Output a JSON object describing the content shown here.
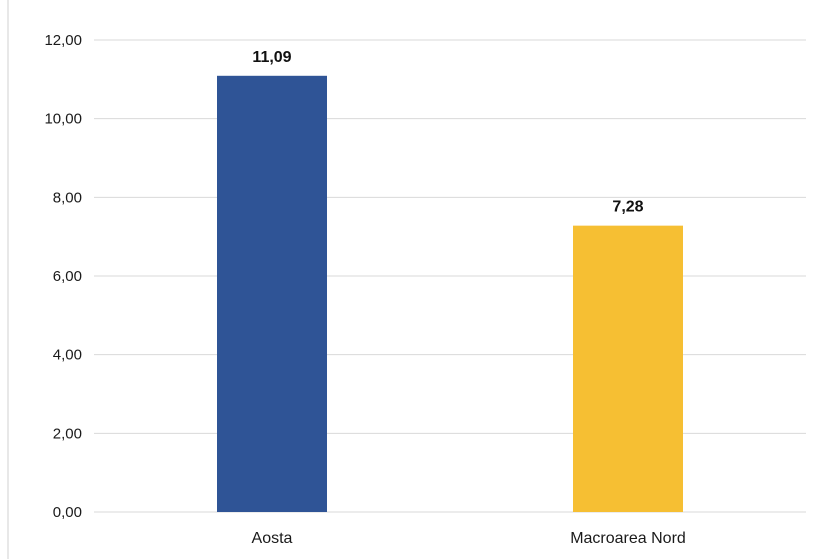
{
  "chart_data": {
    "type": "bar",
    "categories": [
      "Aosta",
      "Macroarea Nord"
    ],
    "values": [
      11.09,
      7.28
    ],
    "value_labels": [
      "11,09",
      "7,28"
    ],
    "colors": [
      "#2f5496",
      "#f6bf33"
    ],
    "ylim": [
      0,
      12
    ],
    "yticks": [
      0,
      2,
      4,
      6,
      8,
      10,
      12
    ],
    "ytick_labels": [
      "0,00",
      "2,00",
      "4,00",
      "6,00",
      "8,00",
      "10,00",
      "12,00"
    ],
    "grid": true,
    "title": "",
    "xlabel": "",
    "ylabel": ""
  }
}
